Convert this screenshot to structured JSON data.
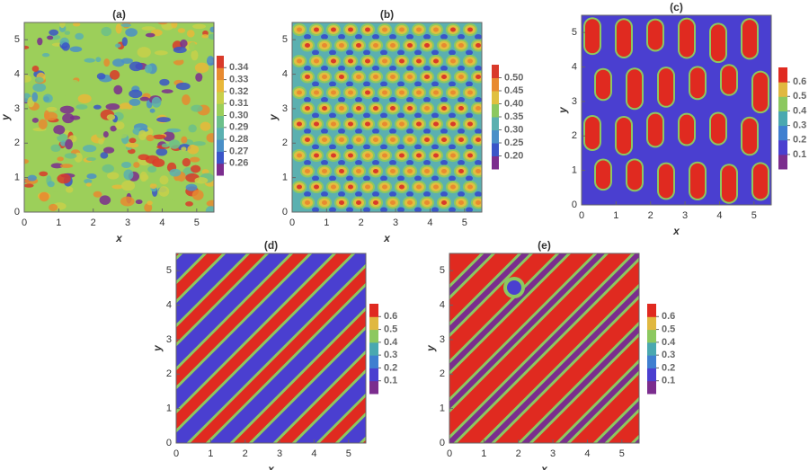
{
  "chart_data": [
    {
      "type": "contour",
      "title": "(a)",
      "x_label": "x",
      "y_label": "y",
      "xlim": [
        0,
        5.5
      ],
      "ylim": [
        0,
        5.5
      ],
      "xticks": [
        0,
        1,
        2,
        3,
        4,
        5
      ],
      "yticks": [
        0,
        1,
        2,
        3,
        4,
        5
      ],
      "colorbar": {
        "clim": [
          0.25,
          0.35
        ],
        "ticks": [
          0.26,
          0.27,
          0.28,
          0.29,
          {
            "value": 0.3,
            "label": "0.30"
          },
          0.31,
          0.32,
          0.33,
          0.34
        ],
        "colors": [
          "#7b2d8e",
          "#3a55c8",
          "#4a8fc8",
          "#5bb0b0",
          "#6cc08a",
          "#9ccf5a",
          "#c8d04a",
          "#e8b83a",
          "#e88a30",
          "#d93a2a"
        ]
      }
    },
    {
      "type": "contour",
      "title": "(b)",
      "x_label": "x",
      "y_label": "y",
      "xlim": [
        0,
        5.5
      ],
      "ylim": [
        0,
        5.5
      ],
      "xticks": [
        0,
        1,
        2,
        3,
        4,
        5
      ],
      "yticks": [
        0,
        1,
        2,
        3,
        4,
        5
      ],
      "colorbar": {
        "clim": [
          0.15,
          0.55
        ],
        "ticks": [
          {
            "value": 0.2,
            "label": "0.20"
          },
          0.25,
          {
            "value": 0.3,
            "label": "0.30"
          },
          0.35,
          {
            "value": 0.4,
            "label": "0.40"
          },
          0.45,
          {
            "value": 0.5,
            "label": "0.50"
          }
        ],
        "colors": [
          "#7b2d8e",
          "#3a55c8",
          "#4a8fc8",
          "#5bb0b0",
          "#8cc860",
          "#e0c040",
          "#e88a30",
          "#d93a2a"
        ]
      }
    },
    {
      "type": "contour",
      "title": "(c)",
      "x_label": "x",
      "y_label": "y",
      "xlim": [
        0,
        5.5
      ],
      "ylim": [
        0,
        5.5
      ],
      "xticks": [
        0,
        1,
        2,
        3,
        4,
        5
      ],
      "yticks": [
        0,
        1,
        2,
        3,
        4,
        5
      ],
      "colorbar": {
        "clim": [
          0,
          0.7
        ],
        "ticks": [
          0.1,
          0.2,
          0.3,
          0.4,
          0.5,
          0.6
        ],
        "colors": [
          "#7b2d8e",
          "#4a3fd0",
          "#3f7fd0",
          "#4aa8b0",
          "#8cc860",
          "#e0b840",
          "#e02a20"
        ]
      }
    },
    {
      "type": "contour",
      "title": "(d)",
      "x_label": "x",
      "y_label": "y",
      "xlim": [
        0,
        5.5
      ],
      "ylim": [
        0,
        5.5
      ],
      "xticks": [
        0,
        1,
        2,
        3,
        4,
        5
      ],
      "yticks": [
        0,
        1,
        2,
        3,
        4,
        5
      ],
      "colorbar": {
        "clim": [
          0,
          0.7
        ],
        "ticks": [
          0.1,
          0.2,
          0.3,
          0.4,
          0.5,
          0.6
        ],
        "colors": [
          "#7b2d8e",
          "#4a3fd0",
          "#3f7fd0",
          "#4aa8b0",
          "#8cc860",
          "#e0b840",
          "#e02a20"
        ]
      }
    },
    {
      "type": "contour",
      "title": "(e)",
      "x_label": "x",
      "y_label": "y",
      "xlim": [
        0,
        5.5
      ],
      "ylim": [
        0,
        5.5
      ],
      "xticks": [
        0,
        1,
        2,
        3,
        4,
        5
      ],
      "yticks": [
        0,
        1,
        2,
        3,
        4,
        5
      ],
      "colorbar": {
        "clim": [
          0,
          0.7
        ],
        "ticks": [
          0.1,
          0.2,
          0.3,
          0.4,
          0.5,
          0.6
        ],
        "colors": [
          "#7b2d8e",
          "#4a3fd0",
          "#3f7fd0",
          "#4aa8b0",
          "#8cc860",
          "#e0b840",
          "#e02a20"
        ]
      }
    }
  ]
}
